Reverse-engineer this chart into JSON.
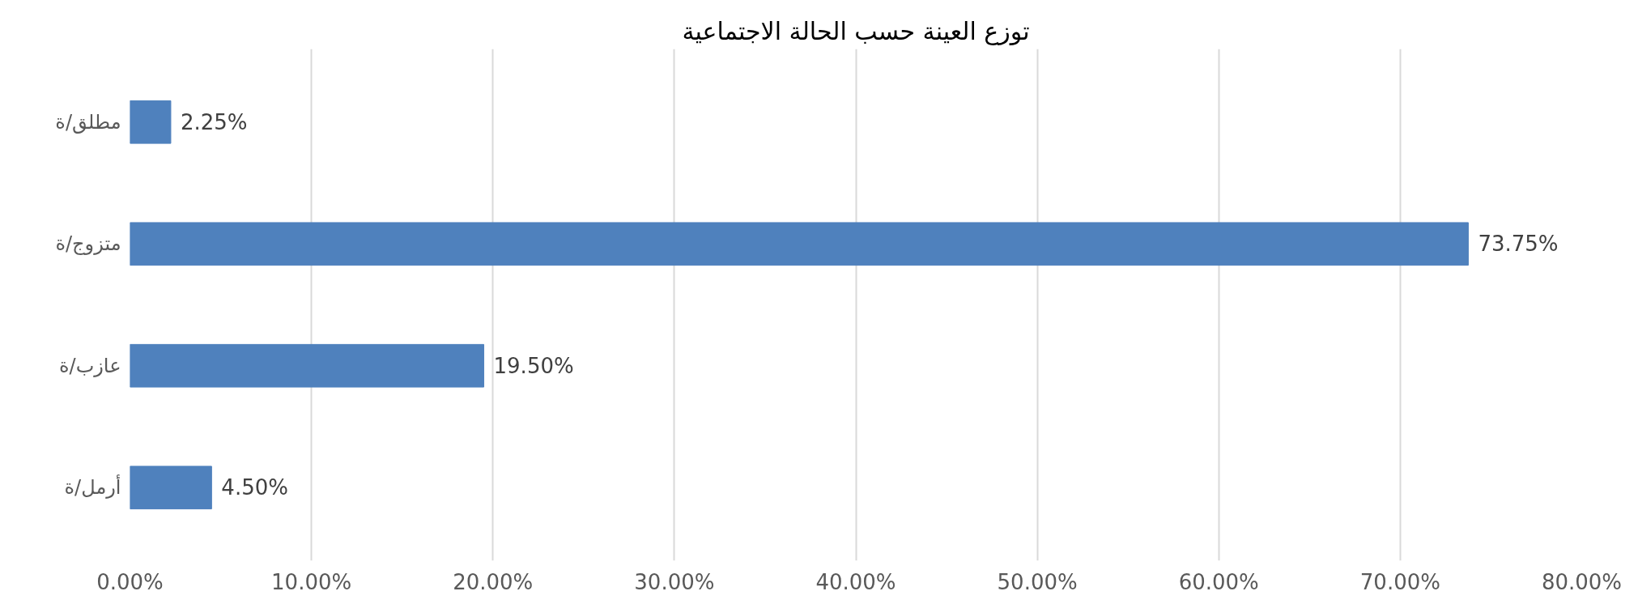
{
  "chart_data": {
    "type": "bar",
    "orientation": "horizontal",
    "title": "توزع العينة حسب الحالة الاجتماعية",
    "categories": [
      "مطلق/ة",
      "متزوج/ة",
      "عازب/ة",
      "أرمل/ة"
    ],
    "values": [
      2.25,
      73.75,
      19.5,
      4.5
    ],
    "value_labels": [
      "2.25%",
      "73.75%",
      "19.50%",
      "4.50%"
    ],
    "color": "#4f81bd",
    "xlim": [
      0,
      80
    ],
    "xticks": [
      {
        "value": 0,
        "label": "0.00%"
      },
      {
        "value": 10,
        "label": "10.00%"
      },
      {
        "value": 20,
        "label": "20.00%"
      },
      {
        "value": 30,
        "label": "30.00%"
      },
      {
        "value": 40,
        "label": "40.00%"
      },
      {
        "value": 50,
        "label": "50.00%"
      },
      {
        "value": 60,
        "label": "60.00%"
      },
      {
        "value": 70,
        "label": "70.00%"
      },
      {
        "value": 80,
        "label": "80.00%"
      }
    ],
    "grid": "x"
  }
}
